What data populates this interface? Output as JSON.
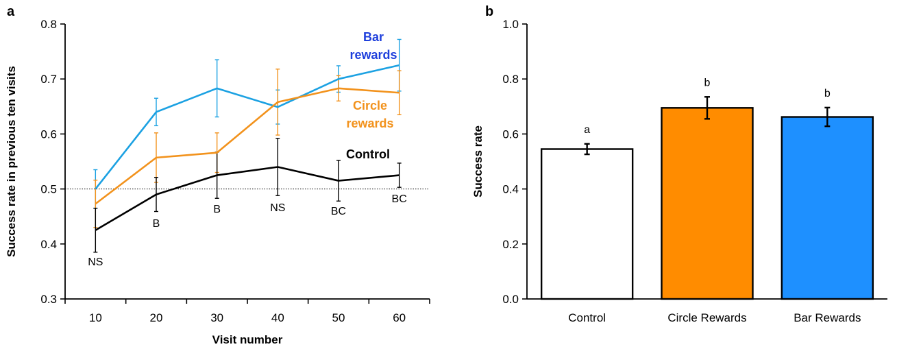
{
  "chart_data": [
    {
      "panel": "a",
      "type": "line",
      "xlabel": "Visit number",
      "ylabel": "Success rate in previous ten visits",
      "x": [
        10,
        20,
        30,
        40,
        50,
        60
      ],
      "xlim": [
        5,
        65
      ],
      "ylim": [
        0.3,
        0.8
      ],
      "yticks": [
        "0.3",
        "0.4",
        "0.5",
        "0.6",
        "0.7",
        "0.8"
      ],
      "reference_line": 0.5,
      "grid": false,
      "series": [
        {
          "name": "Bar rewards",
          "label_lines": [
            "Bar",
            "rewards"
          ],
          "color": "#1ba1e2",
          "label_color": "#1e3fdc",
          "values": [
            0.5,
            0.64,
            0.683,
            0.649,
            0.7,
            0.725
          ],
          "errors": [
            0.035,
            0.025,
            0.052,
            0.031,
            0.024,
            0.047
          ]
        },
        {
          "name": "Circle rewards",
          "label_lines": [
            "Circle",
            "rewards"
          ],
          "color": "#f2921c",
          "label_color": "#f2921c",
          "values": [
            0.473,
            0.557,
            0.566,
            0.658,
            0.683,
            0.675
          ],
          "errors": [
            0.043,
            0.045,
            0.036,
            0.06,
            0.023,
            0.04
          ]
        },
        {
          "name": "Control",
          "label_lines": [
            "Control"
          ],
          "color": "#000000",
          "label_color": "#000000",
          "values": [
            0.425,
            0.49,
            0.525,
            0.54,
            0.515,
            0.525
          ],
          "errors": [
            0.04,
            0.031,
            0.042,
            0.052,
            0.037,
            0.022
          ]
        }
      ],
      "annotations": [
        "NS",
        "B",
        "B",
        "NS",
        "BC",
        "BC"
      ]
    },
    {
      "panel": "b",
      "type": "bar",
      "ylabel": "Success rate",
      "categories": [
        "Control",
        "Circle Rewards",
        "Bar Rewards"
      ],
      "values": [
        0.545,
        0.695,
        0.662
      ],
      "errors": [
        0.019,
        0.04,
        0.034
      ],
      "colors": [
        "#ffffff",
        "#ff8c00",
        "#1e90ff"
      ],
      "letters": [
        "a",
        "b",
        "b"
      ],
      "ylim": [
        0.0,
        1.0
      ],
      "yticks": [
        "0.0",
        "0.2",
        "0.4",
        "0.6",
        "0.8",
        "1.0"
      ],
      "grid": false
    }
  ]
}
